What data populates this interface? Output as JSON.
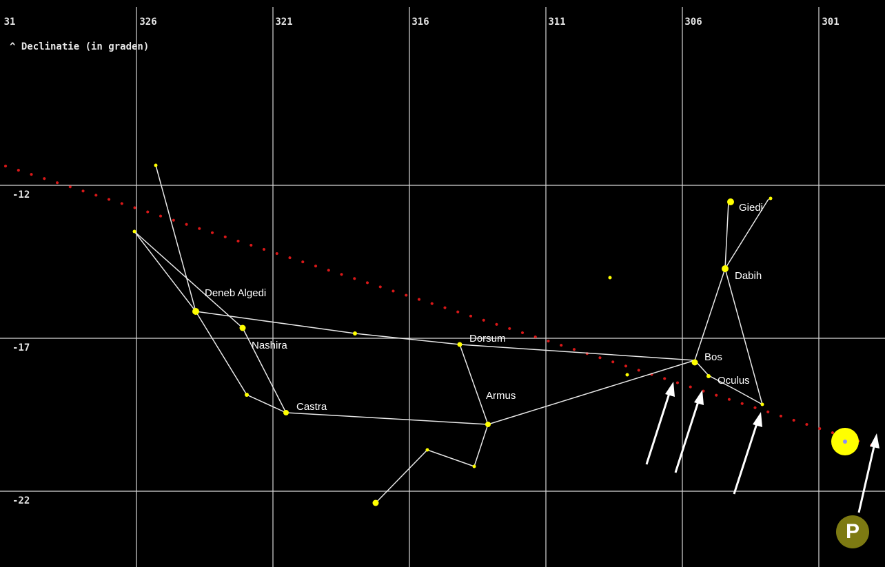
{
  "axis_title": "^ Declinatie (in graden)",
  "ra_labels": [
    "31",
    "326",
    "321",
    "316",
    "311",
    "306",
    "301"
  ],
  "dec_labels": [
    "-12",
    "-17",
    "-22"
  ],
  "stars": {
    "deneb_algedi": "Deneb Algedi",
    "nashira": "Nashira",
    "castra": "Castra",
    "dorsum": "Dorsum",
    "armus": "Armus",
    "bos": "Bos",
    "oculus": "Oculus",
    "dabih": "Dabih",
    "giedi": "Giedi"
  },
  "planet_badge": "P",
  "colors": {
    "background": "#000000",
    "grid": "#d8d8d8",
    "ecliptic": "#d81818",
    "star": "#ffff00",
    "constellation_line": "#e8e8e8",
    "sun": "#ffff00",
    "badge": "#7d7a12"
  }
}
